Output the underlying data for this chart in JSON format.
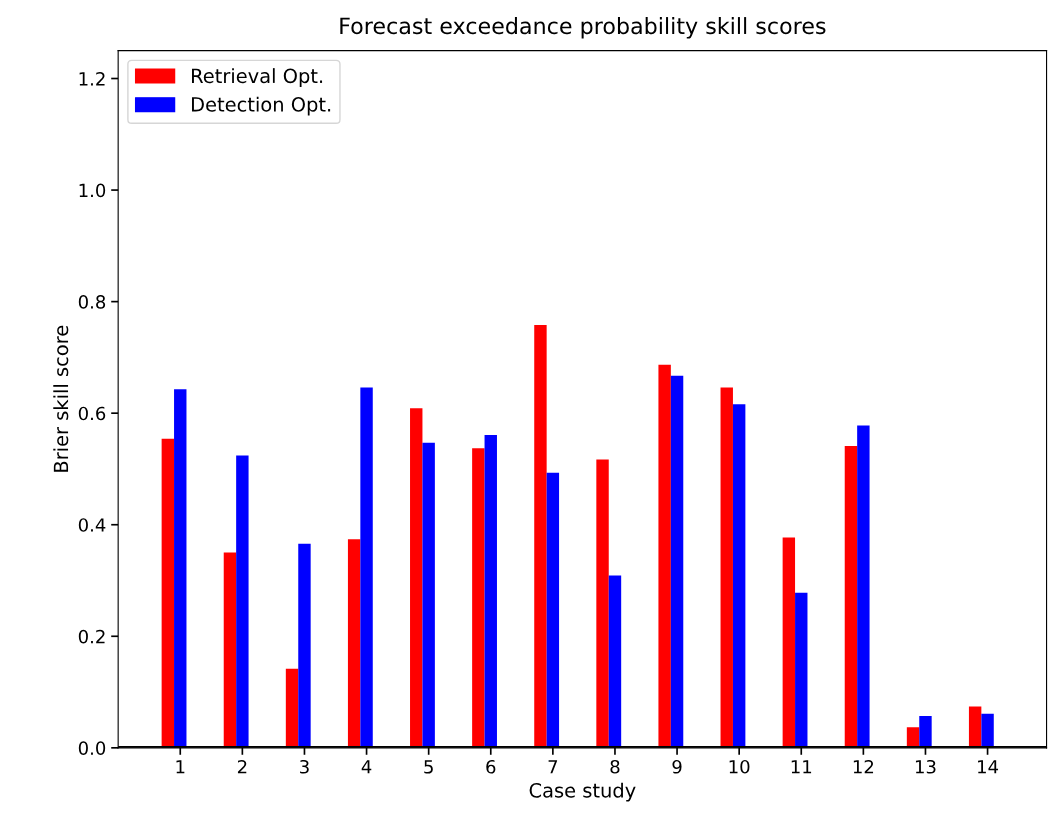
{
  "chart_data": {
    "type": "bar",
    "title": "Forecast exceedance probability skill scores",
    "xlabel": "Case study",
    "ylabel": "Brier skill score",
    "categories": [
      "1",
      "2",
      "3",
      "4",
      "5",
      "6",
      "7",
      "8",
      "9",
      "10",
      "11",
      "12",
      "13",
      "14"
    ],
    "series": [
      {
        "name": "Retrieval Opt.",
        "color": "#ff0000",
        "values": [
          0.554,
          0.35,
          0.142,
          0.374,
          0.609,
          0.537,
          0.758,
          0.517,
          0.687,
          0.646,
          0.377,
          0.541,
          0.037,
          0.074
        ]
      },
      {
        "name": "Detection Opt.",
        "color": "#0000ff",
        "values": [
          0.643,
          0.524,
          0.366,
          0.646,
          0.547,
          0.561,
          0.493,
          0.309,
          0.667,
          0.616,
          0.278,
          0.578,
          0.057,
          0.061
        ]
      }
    ],
    "ylim": [
      0,
      1.25
    ],
    "yticks": [
      {
        "value": 0,
        "label": "0.0"
      },
      0.2,
      0.4,
      0.6,
      0.8,
      {
        "value": 1,
        "label": "1.0"
      },
      1.2
    ],
    "ref_lines": [
      {
        "axis": "y",
        "value": 0,
        "color": "#000000"
      }
    ],
    "grid": false,
    "legend": "top left"
  }
}
